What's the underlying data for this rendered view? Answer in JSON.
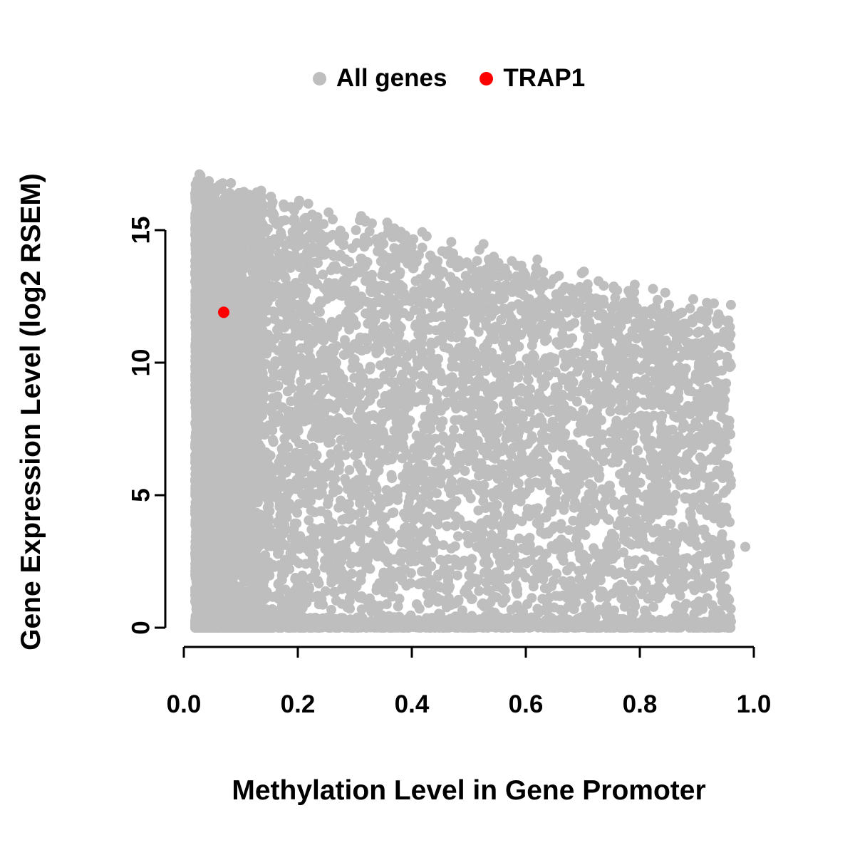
{
  "legend": {
    "items": [
      {
        "label": "All genes",
        "color": "#bebebe"
      },
      {
        "label": "TRAP1",
        "color": "#ff0000"
      }
    ]
  },
  "chart_data": {
    "type": "scatter",
    "title": "",
    "xlabel": "Methylation Level in Gene Promoter",
    "ylabel": "Gene Expression Level (log2 RSEM)",
    "xlim": [
      0,
      1
    ],
    "ylim": [
      0,
      15
    ],
    "x_ticks": [
      "0.0",
      "0.2",
      "0.4",
      "0.6",
      "0.8",
      "1.0"
    ],
    "x_tick_values": [
      0,
      0.2,
      0.4,
      0.6,
      0.8,
      1.0
    ],
    "y_ticks": [
      "0",
      "5",
      "10",
      "15"
    ],
    "y_tick_values": [
      0,
      5,
      10,
      15
    ],
    "grid": false,
    "legend_position": "top-center",
    "series": [
      {
        "name": "All genes",
        "color": "#bebebe",
        "marker": "filled-circle",
        "representation": "dense cloud of ~9000 genes; methylation 0.02-0.96; expression 0-16.8 log2 RSEM; upper envelope falls from ~16.8 at methylation 0 to ~11.5 near methylation 0.95; very dense vertical band at methylation < 0.12 and dense stripe along expression = 0",
        "generator": {
          "seed": 42,
          "n": 9000,
          "x_min": 0.02,
          "x_max": 0.96,
          "left_frac": 0.32,
          "left_width": 0.12,
          "x_pow": 1.15,
          "env_y0": 16.8,
          "env_y1": 11.4,
          "env_noise": 1.2,
          "base_frac": 0.15,
          "y_pow": 0.9
        }
      },
      {
        "name": "TRAP1",
        "color": "#ff0000",
        "marker": "filled-circle",
        "points": [
          [
            0.07,
            11.9
          ]
        ]
      }
    ],
    "extra_points": [
      [
        0.985,
        3.05
      ]
    ]
  }
}
